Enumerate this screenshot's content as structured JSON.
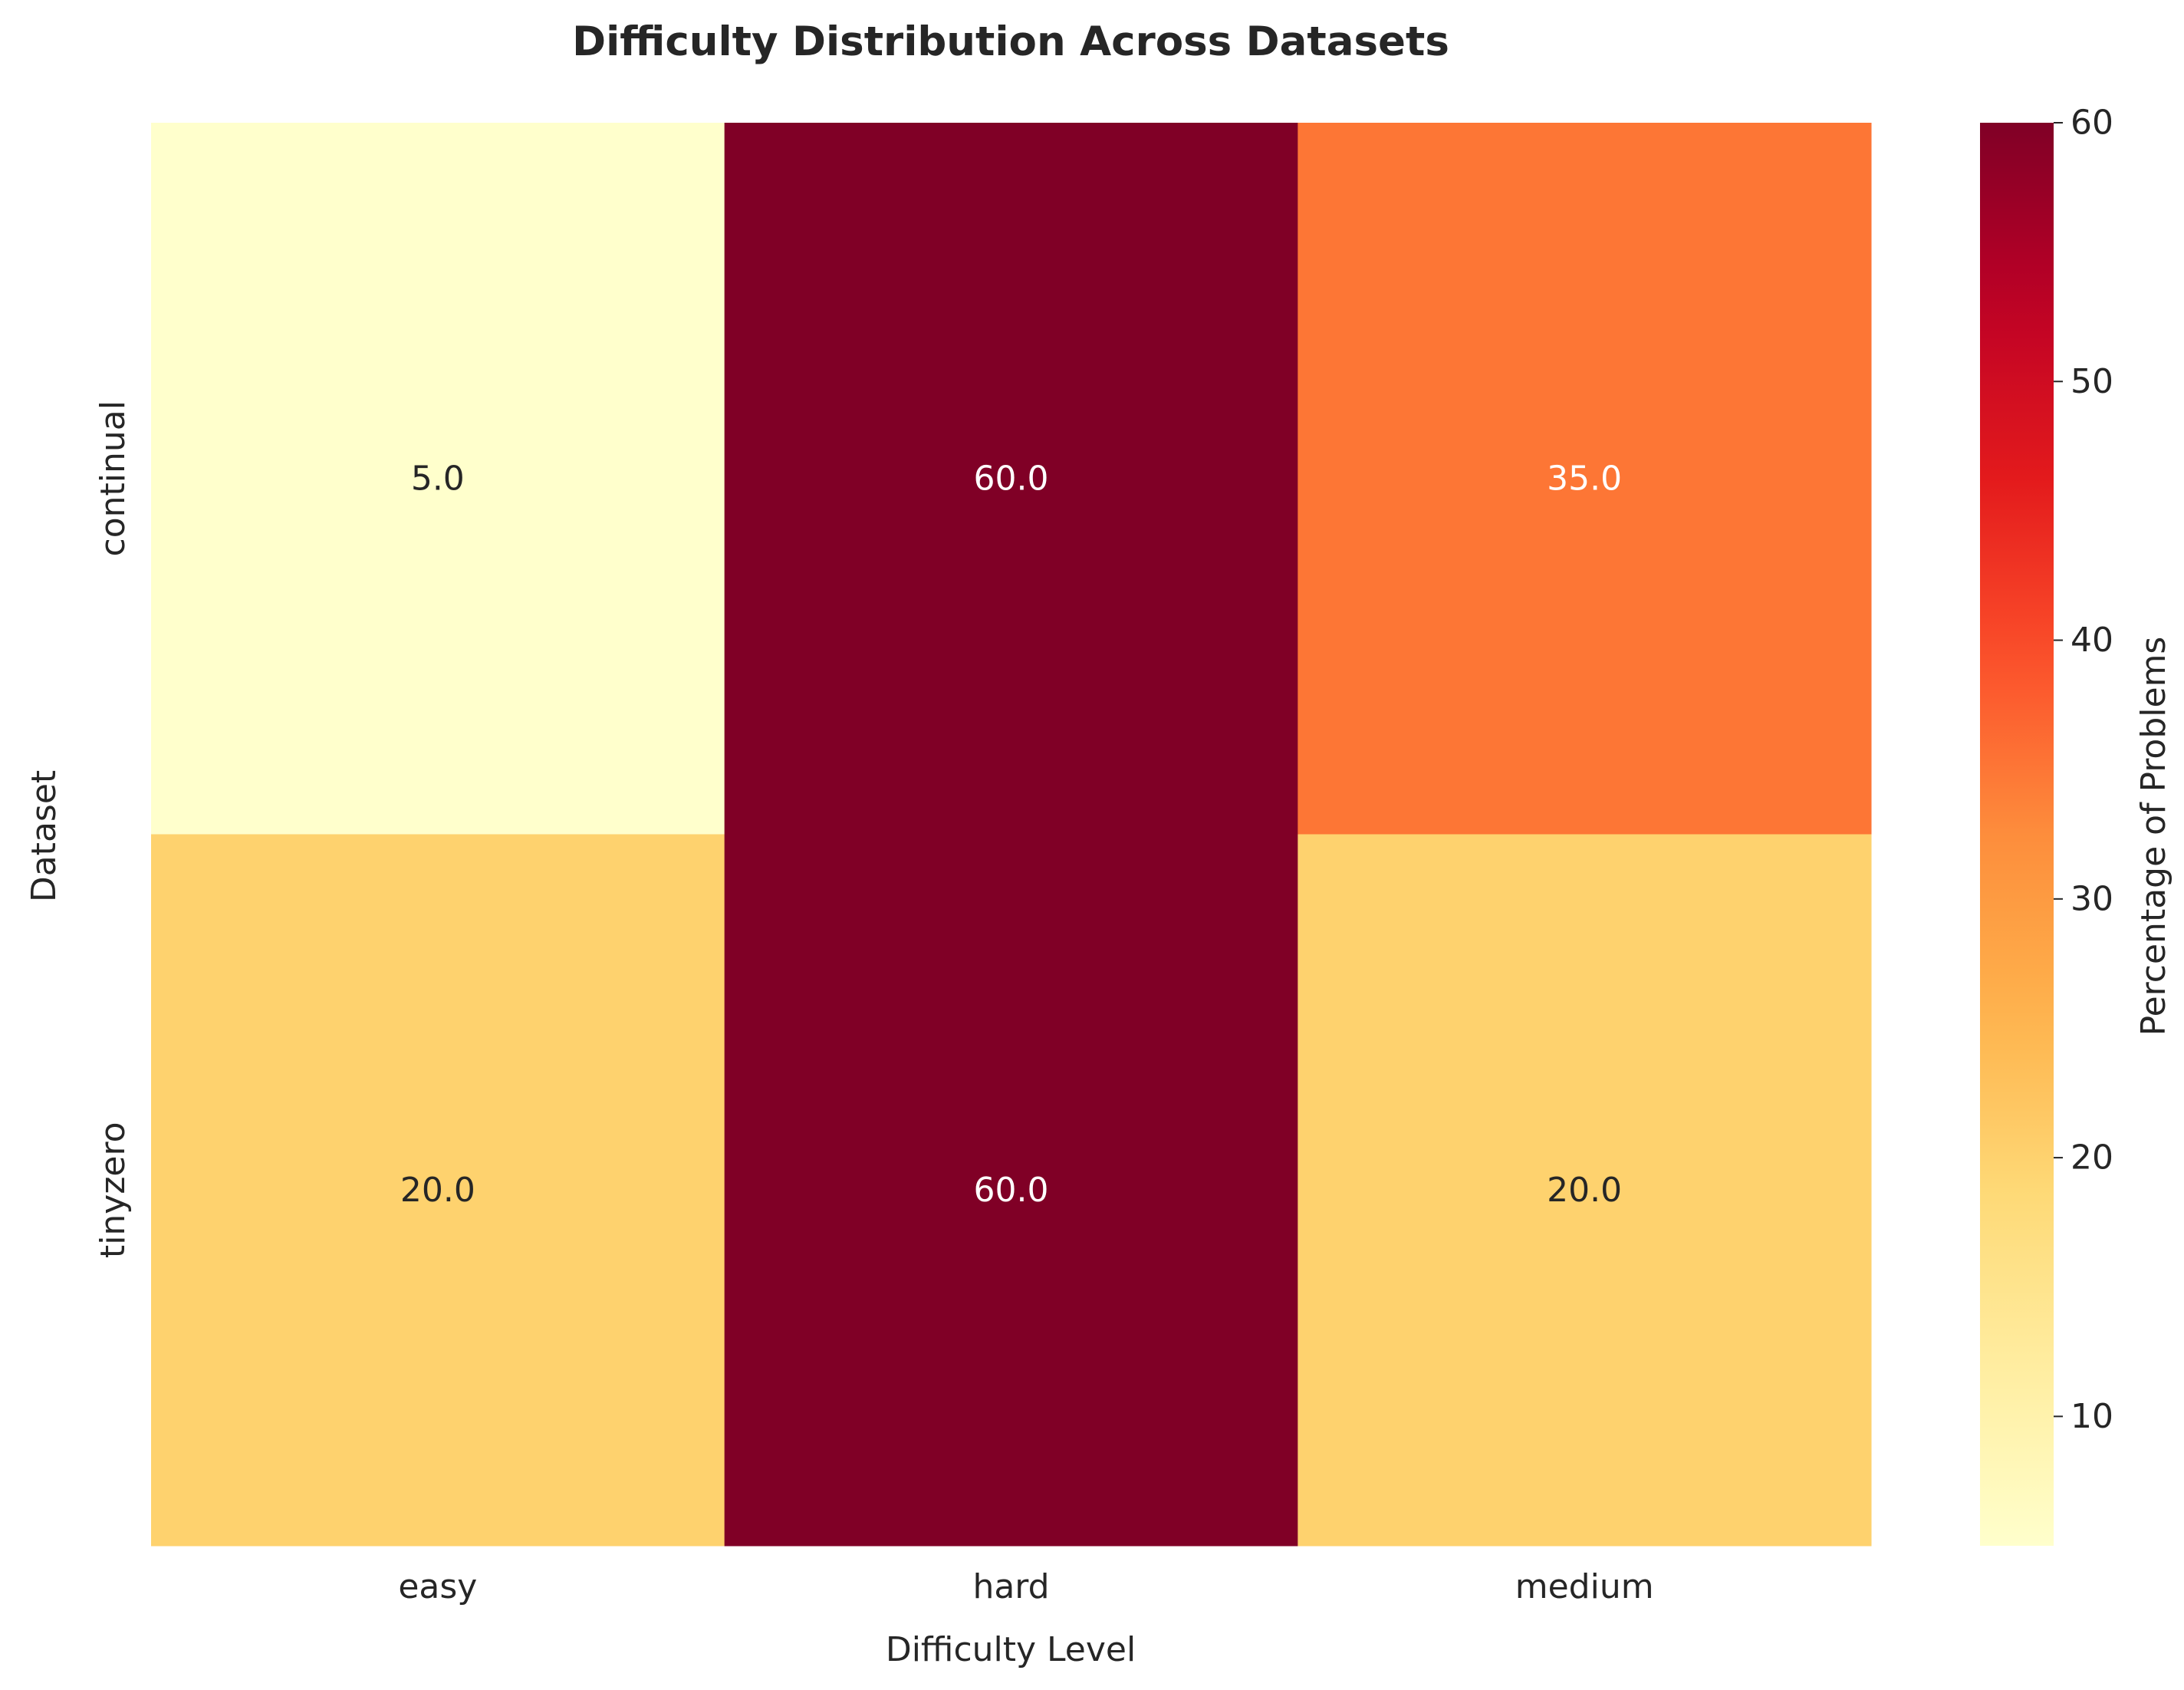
{
  "chart_data": {
    "type": "heatmap",
    "title": "Difficulty Distribution Across Datasets",
    "xlabel": "Difficulty Level",
    "ylabel": "Dataset",
    "x_categories": [
      "easy",
      "hard",
      "medium"
    ],
    "y_categories": [
      "continual",
      "tinyzero"
    ],
    "values": [
      [
        5.0,
        60.0,
        35.0
      ],
      [
        20.0,
        60.0,
        20.0
      ]
    ],
    "value_labels": [
      [
        "5.0",
        "60.0",
        "35.0"
      ],
      [
        "20.0",
        "60.0",
        "20.0"
      ]
    ],
    "colormap": "YlOrRd",
    "colorbar": {
      "label": "Percentage of Problems",
      "range": [
        5,
        60
      ],
      "ticks": [
        10,
        20,
        30,
        40,
        50,
        60
      ]
    },
    "colors": {
      "low": "#ffffcc",
      "high": "#800026",
      "text_dark": "#262626",
      "text_light": "#ffffff"
    }
  }
}
